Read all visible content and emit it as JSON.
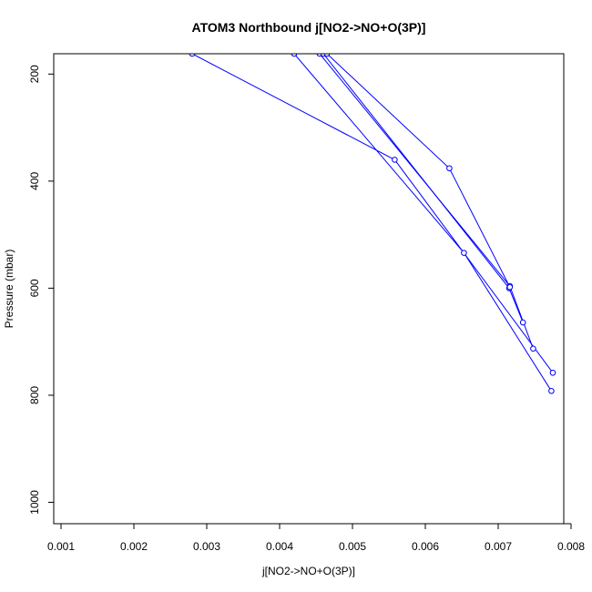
{
  "chart_data": {
    "type": "line",
    "title": "ATOM3 Northbound j[NO2->NO+O(3P)]",
    "xlabel": "j[NO2->NO+O(3P)]",
    "ylabel": "Pressure (mbar)",
    "xlim": [
      0.001,
      0.008
    ],
    "ylim": [
      1040,
      162
    ],
    "y_reversed": true,
    "x_ticks": [
      0.001,
      0.002,
      0.003,
      0.004,
      0.005,
      0.006,
      0.007,
      0.008
    ],
    "x_tick_labels": [
      "0.001",
      "0.002",
      "0.003",
      "0.004",
      "0.005",
      "0.006",
      "0.007",
      "0.008"
    ],
    "y_ticks": [
      200,
      400,
      600,
      800,
      1000
    ],
    "y_tick_labels": [
      "200",
      "400",
      "600",
      "800",
      "1000"
    ],
    "line_color": "#0000ff",
    "marker": "open-circle",
    "grid": false,
    "series": [
      {
        "x": [
          0.00775,
          0.00558,
          0.0028
        ],
        "y": [
          758,
          360,
          162
        ]
      },
      {
        "x": [
          0.00773,
          0.00653,
          0.0042
        ],
        "y": [
          792,
          534,
          162
        ]
      },
      {
        "x": [
          0.00748,
          0.00716,
          0.00455
        ],
        "y": [
          713,
          596,
          162
        ]
      },
      {
        "x": [
          0.00734,
          0.00715,
          0.0046
        ],
        "y": [
          664,
          600,
          162
        ]
      },
      {
        "x": [
          0.00716,
          0.00633,
          0.00465
        ],
        "y": [
          598,
          376,
          162
        ]
      }
    ]
  }
}
